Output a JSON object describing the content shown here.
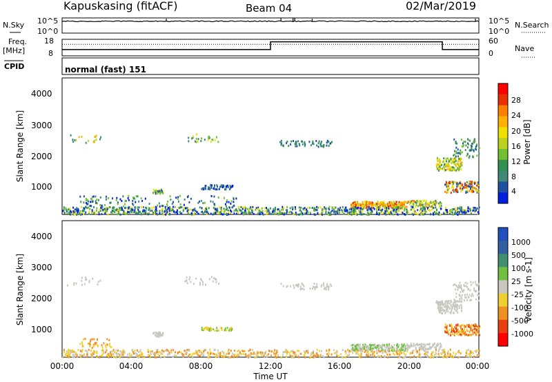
{
  "header": {
    "radar": "Kapuskasing (fitACF)",
    "beam": "Beam 04",
    "date": "02/Mar/2019"
  },
  "sky_panel": {
    "left_label": "N.Sky",
    "right_label": "N.Search",
    "left_ticks": [
      "10^5",
      "10^0"
    ],
    "right_ticks": [
      "10^5",
      "10^0"
    ]
  },
  "freq_panel": {
    "left_label_1": "Freq.",
    "left_label_2": "[MHz]",
    "right_label": "Nave",
    "left_ticks": [
      "18",
      "8"
    ],
    "right_ticks": [
      "60",
      "0"
    ]
  },
  "cpid_panel": {
    "label": "CPID",
    "text": "normal (fast) 151"
  },
  "chart_data": [
    {
      "type": "heatmap",
      "name": "power",
      "ylabel": "Slant Range [km]",
      "xlabel": "",
      "colorbar_label": "Power [dB]",
      "colorbar_ticks": [
        "28",
        "24",
        "20",
        "16",
        "12",
        "8",
        "4"
      ],
      "y_ticks": [
        "4000",
        "3000",
        "2000",
        "1000"
      ],
      "ylim": [
        180,
        4500
      ],
      "xlim": [
        0,
        24
      ],
      "colors": [
        "#ff0000",
        "#e83000",
        "#ff8000",
        "#ffb000",
        "#f0e000",
        "#bcd020",
        "#70c030",
        "#309050",
        "#408878",
        "#2050a0",
        "#0020e0"
      ],
      "scatter_clusters": [
        {
          "t0": 0.1,
          "t1": 2.2,
          "r0": 2450,
          "r1": 2750,
          "n": 18,
          "c": [
            3,
            5,
            8
          ]
        },
        {
          "t0": 5.2,
          "t1": 5.8,
          "r0": 850,
          "r1": 1000,
          "n": 30,
          "c": [
            4,
            6,
            9
          ]
        },
        {
          "t0": 7.0,
          "t1": 9.0,
          "r0": 2500,
          "r1": 2750,
          "n": 25,
          "c": [
            4,
            6,
            8
          ]
        },
        {
          "t0": 8.0,
          "t1": 9.8,
          "r0": 1000,
          "r1": 1150,
          "n": 60,
          "c": [
            8,
            9,
            10
          ]
        },
        {
          "t0": 12.5,
          "t1": 15.5,
          "r0": 2350,
          "r1": 2550,
          "n": 60,
          "c": [
            7,
            8,
            9
          ]
        },
        {
          "t0": 16.6,
          "t1": 19.8,
          "r0": 400,
          "r1": 620,
          "n": 220,
          "c": [
            1,
            2,
            3,
            4,
            5
          ]
        },
        {
          "t0": 19.8,
          "t1": 21.8,
          "r0": 450,
          "r1": 650,
          "n": 90,
          "c": [
            2,
            4,
            6,
            8
          ]
        },
        {
          "t0": 21.5,
          "t1": 23.0,
          "r0": 1600,
          "r1": 2000,
          "n": 130,
          "c": [
            3,
            4,
            5,
            6,
            7
          ]
        },
        {
          "t0": 22.5,
          "t1": 24.0,
          "r0": 2000,
          "r1": 2600,
          "n": 70,
          "c": [
            6,
            7,
            8,
            9
          ]
        },
        {
          "t0": 22.0,
          "t1": 24.0,
          "r0": 900,
          "r1": 1250,
          "n": 140,
          "c": [
            1,
            2,
            3,
            4,
            8,
            9
          ]
        },
        {
          "t0": 0.0,
          "t1": 24.0,
          "r0": 200,
          "r1": 450,
          "n": 900,
          "c": [
            4,
            6,
            7,
            8,
            9,
            10
          ]
        },
        {
          "t0": 1.0,
          "t1": 10.0,
          "r0": 450,
          "r1": 800,
          "n": 120,
          "c": [
            6,
            8,
            9,
            10
          ]
        }
      ]
    },
    {
      "type": "heatmap",
      "name": "velocity",
      "ylabel": "Slant Range [km]",
      "xlabel": "Time UT",
      "colorbar_label": "Velocity [m s-1]",
      "colorbar_ticks": [
        "1000",
        "500",
        "100",
        "25",
        "-25",
        "-100",
        "-500",
        "-1000"
      ],
      "y_ticks": [
        "4000",
        "3000",
        "2000",
        "1000"
      ],
      "x_ticks": [
        "00:00",
        "04:00",
        "08:00",
        "12:00",
        "16:00",
        "20:00",
        "00:00"
      ],
      "ylim": [
        180,
        4500
      ],
      "xlim": [
        0,
        24
      ],
      "colors": [
        "#2050c0",
        "#3060a0",
        "#409070",
        "#70c040",
        "#c8c8c0",
        "#f0d030",
        "#f09020",
        "#e84010",
        "#ff0000"
      ],
      "scatter_clusters": [
        {
          "t0": 0.1,
          "t1": 2.2,
          "r0": 2450,
          "r1": 2750,
          "n": 18,
          "c": [
            4
          ]
        },
        {
          "t0": 1.0,
          "t1": 2.8,
          "r0": 500,
          "r1": 800,
          "n": 40,
          "c": [
            5,
            6
          ]
        },
        {
          "t0": 5.2,
          "t1": 5.8,
          "r0": 850,
          "r1": 1000,
          "n": 30,
          "c": [
            4
          ]
        },
        {
          "t0": 7.0,
          "t1": 9.0,
          "r0": 2500,
          "r1": 2750,
          "n": 25,
          "c": [
            4
          ]
        },
        {
          "t0": 8.0,
          "t1": 9.8,
          "r0": 1050,
          "r1": 1150,
          "n": 50,
          "c": [
            3,
            5
          ]
        },
        {
          "t0": 12.5,
          "t1": 15.5,
          "r0": 2350,
          "r1": 2550,
          "n": 50,
          "c": [
            4
          ]
        },
        {
          "t0": 16.6,
          "t1": 19.8,
          "r0": 400,
          "r1": 620,
          "n": 200,
          "c": [
            4,
            3
          ]
        },
        {
          "t0": 19.8,
          "t1": 21.8,
          "r0": 450,
          "r1": 650,
          "n": 90,
          "c": [
            4
          ]
        },
        {
          "t0": 21.5,
          "t1": 23.0,
          "r0": 1600,
          "r1": 2000,
          "n": 130,
          "c": [
            4
          ]
        },
        {
          "t0": 22.5,
          "t1": 24.0,
          "r0": 2000,
          "r1": 2600,
          "n": 70,
          "c": [
            4
          ]
        },
        {
          "t0": 22.0,
          "t1": 24.0,
          "r0": 900,
          "r1": 1250,
          "n": 140,
          "c": [
            5,
            6,
            7
          ]
        },
        {
          "t0": 0.0,
          "t1": 24.0,
          "r0": 200,
          "r1": 450,
          "n": 700,
          "c": [
            5,
            4,
            6
          ]
        }
      ]
    }
  ],
  "nsky_series": {
    "baseline": 0.78,
    "spikes": [
      [
        6.0,
        0.95
      ],
      [
        12.6,
        1.05
      ],
      [
        13.3,
        1.1
      ],
      [
        13.4,
        1.1
      ],
      [
        14.4,
        0.95
      ],
      [
        23.8,
        0.95
      ]
    ]
  },
  "freq_series": {
    "steps": [
      [
        0,
        0.38
      ],
      [
        12.0,
        0.38
      ],
      [
        12.0,
        0.85
      ],
      [
        21.9,
        0.85
      ],
      [
        21.9,
        0.38
      ],
      [
        24,
        0.38
      ]
    ],
    "dotted_level": 0.7
  }
}
